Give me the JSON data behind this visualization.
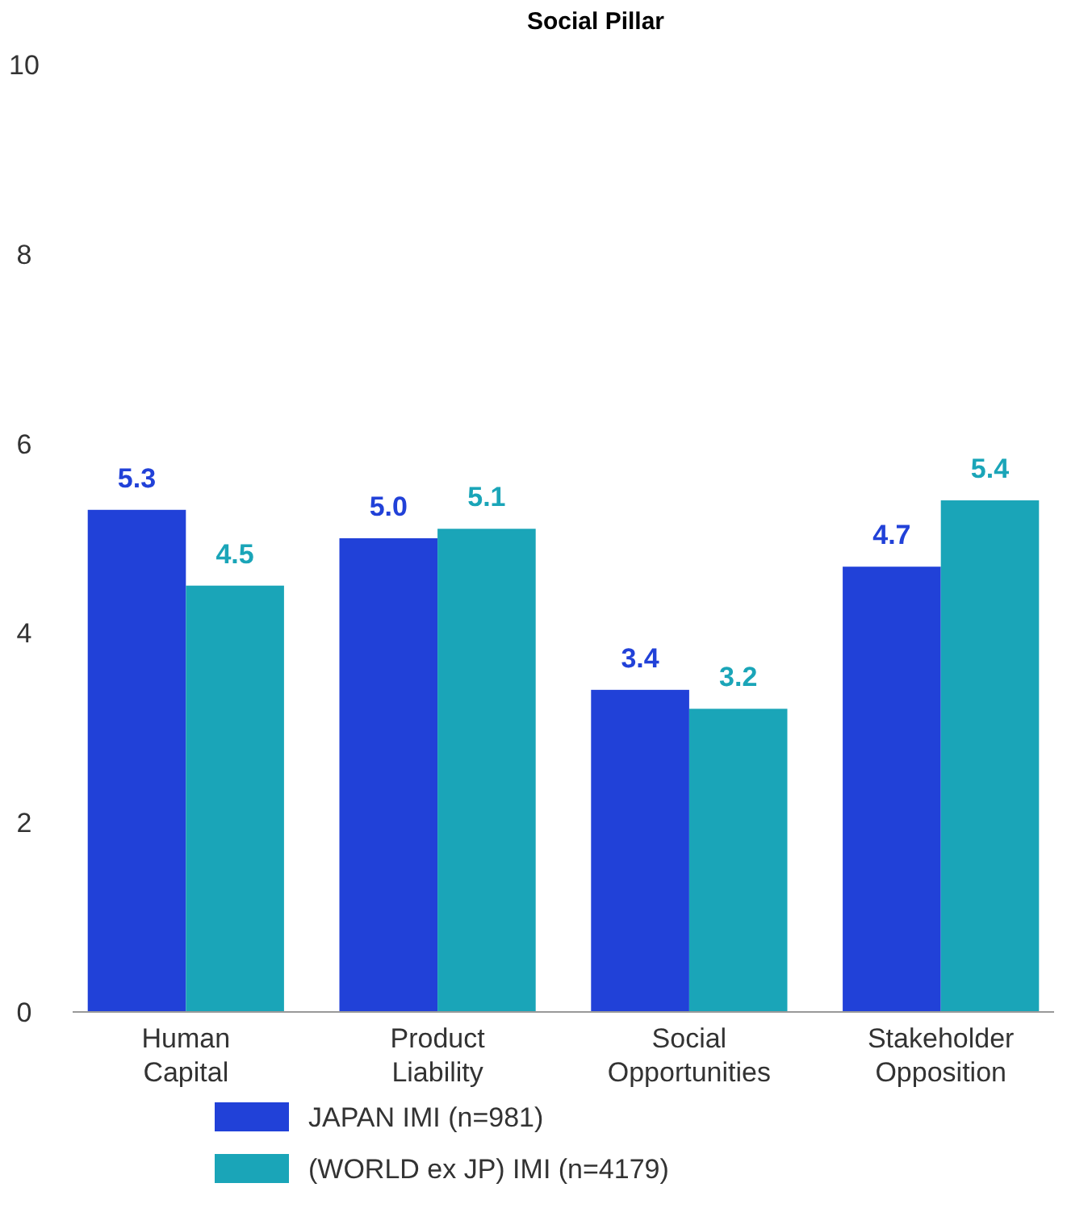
{
  "chart_data": {
    "type": "bar",
    "title": "Social Pillar",
    "categories": [
      "Human Capital",
      "Product Liability",
      "Social Opportunities",
      "Stakeholder Opposition"
    ],
    "series": [
      {
        "name": "JAPAN IMI (n=981)",
        "color": "#2141d8",
        "values": [
          5.3,
          5.0,
          3.4,
          4.7
        ],
        "value_labels": [
          "5.3",
          "5.0",
          "3.4",
          "4.7"
        ]
      },
      {
        "name": "(WORLD ex JP) IMI (n=4179)",
        "color": "#1aa5b8",
        "values": [
          4.5,
          5.1,
          3.2,
          5.4
        ],
        "value_labels": [
          "4.5",
          "5.1",
          "3.2",
          "5.4"
        ]
      }
    ],
    "ylim": [
      0,
      10
    ],
    "yticks": [
      0,
      2,
      4,
      6,
      8,
      10
    ],
    "grid": false,
    "legend": "bottom"
  }
}
